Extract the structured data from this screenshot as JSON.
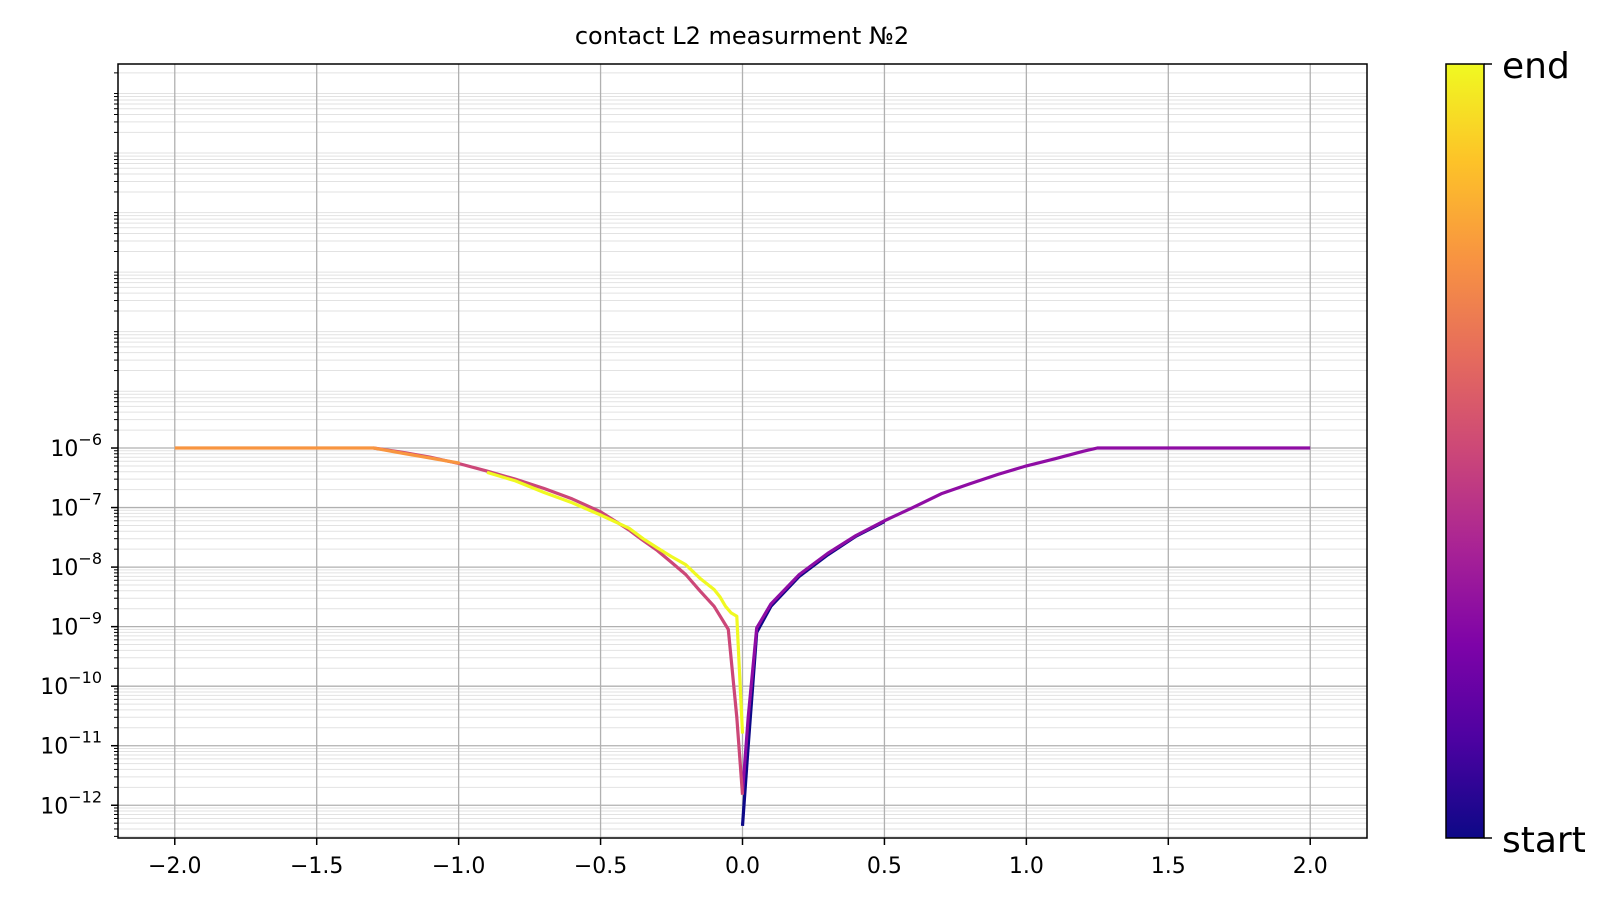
{
  "chart_data": {
    "type": "line",
    "title": "contact L2 measurment №2",
    "xlabel": "",
    "ylabel": "",
    "xlim": [
      -2.2,
      2.2
    ],
    "ylim_exp": [
      -12.55,
      0.45
    ],
    "yscale": "log",
    "grid": {
      "major": true,
      "minor_y": true
    },
    "x_ticks": [
      -2.0,
      -1.5,
      -1.0,
      -0.5,
      0.0,
      0.5,
      1.0,
      1.5,
      2.0
    ],
    "x_tick_labels": [
      "−2.0",
      "−1.5",
      "−1.0",
      "−0.5",
      "0.0",
      "0.5",
      "1.0",
      "1.5",
      "2.0"
    ],
    "y_ticks_exp": [
      -12,
      -11,
      -10,
      -9,
      -8,
      -7,
      -6
    ],
    "y_tick_base": "10",
    "y_tick_exponents": [
      "−12",
      "−11",
      "−10",
      "−9",
      "−8",
      "−7",
      "−6"
    ],
    "colorbar": {
      "colormap": "plasma",
      "label_top": "end",
      "label_bottom": "start"
    },
    "series": [
      {
        "color": "#0d0887",
        "x": [
          0.0,
          0.02,
          0.05,
          0.1,
          0.2,
          0.3,
          0.4,
          0.5
        ],
        "y": [
          4.5e-13,
          1e-11,
          8e-10,
          2.2e-09,
          7e-09,
          1.6e-08,
          3.3e-08,
          5.8e-08
        ]
      },
      {
        "color": "#8f0da4",
        "x": [
          0.0,
          0.02,
          0.05,
          0.1,
          0.2,
          0.3,
          0.4,
          0.5,
          0.6,
          0.7,
          0.8,
          0.9,
          1.0,
          1.1,
          1.2,
          1.25,
          1.5,
          1.75,
          2.0
        ],
        "y": [
          1.6e-12,
          3e-11,
          9.5e-10,
          2.4e-09,
          7.5e-09,
          1.7e-08,
          3.4e-08,
          6e-08,
          1e-07,
          1.7e-07,
          2.5e-07,
          3.6e-07,
          5e-07,
          6.6e-07,
          8.8e-07,
          1e-06,
          1e-06,
          1e-06,
          1e-06
        ]
      },
      {
        "color": "#cc4778",
        "x": [
          0.0,
          -0.02,
          -0.05,
          -0.1,
          -0.15,
          -0.2,
          -0.25,
          -0.3,
          -0.35,
          -0.4,
          -0.45,
          -0.5,
          -0.6,
          -0.7,
          -0.8,
          -0.9,
          -1.0,
          -1.1,
          -1.2,
          -1.3
        ],
        "y": [
          1.5e-12,
          3e-11,
          9e-10,
          2.2e-09,
          4e-09,
          7.5e-09,
          1.2e-08,
          1.9e-08,
          2.8e-08,
          4.2e-08,
          6e-08,
          8.5e-08,
          1.4e-07,
          2.1e-07,
          3e-07,
          4.1e-07,
          5.5e-07,
          7e-07,
          8.5e-07,
          1e-06
        ]
      },
      {
        "color": "#f89540",
        "x": [
          -1.3,
          -1.2,
          -1.1,
          -1.0,
          -1.3,
          -1.5,
          -1.75,
          -2.0
        ],
        "y": [
          1e-06,
          8.2e-07,
          6.8e-07,
          5.6e-07,
          1e-06,
          1e-06,
          1e-06,
          1e-06
        ]
      },
      {
        "color": "#f0f921",
        "x": [
          0.0,
          -0.02,
          -0.04,
          -0.06,
          -0.08,
          -0.1,
          -0.15,
          -0.2,
          -0.25,
          -0.3,
          -0.35,
          -0.4,
          -0.5,
          -0.6,
          -0.7,
          -0.8,
          -0.9
        ],
        "y": [
          1.6e-11,
          1.5e-09,
          1.7e-09,
          2.2e-09,
          3.2e-09,
          4.2e-09,
          6.5e-09,
          1.1e-08,
          1.5e-08,
          2.1e-08,
          3e-08,
          4.5e-08,
          7.5e-08,
          1.2e-07,
          1.8e-07,
          2.8e-07,
          3.9e-07
        ]
      }
    ]
  }
}
